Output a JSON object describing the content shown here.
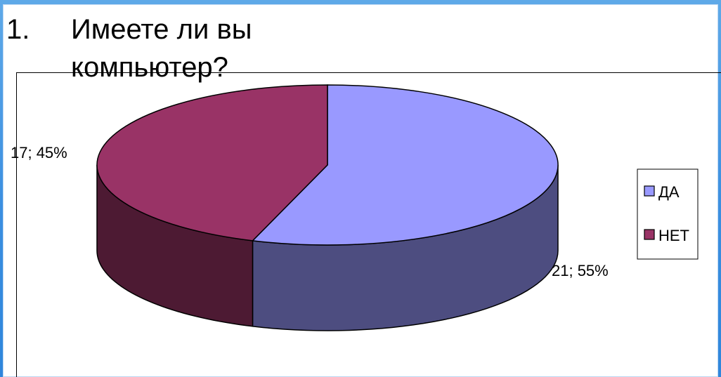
{
  "slide": {
    "number": "1.",
    "title_line1": "Имеете ли вы",
    "title_line2": "компьютер?"
  },
  "chart_data": {
    "type": "pie",
    "style": "3d",
    "title": "Имеете ли вы компьютер?",
    "categories": [
      "ДА",
      "НЕТ"
    ],
    "values": [
      21,
      17
    ],
    "percentages": [
      55,
      45
    ],
    "data_labels": [
      "21; 55%",
      "17; 45%"
    ],
    "colors": {
      "ДА": "#9999ff",
      "НЕТ": "#993366"
    },
    "side_colors": {
      "ДА": "#4d4d80",
      "НЕТ": "#4d1a33"
    },
    "legend": {
      "placement": "right",
      "entries": [
        "ДА",
        "НЕТ"
      ]
    }
  }
}
